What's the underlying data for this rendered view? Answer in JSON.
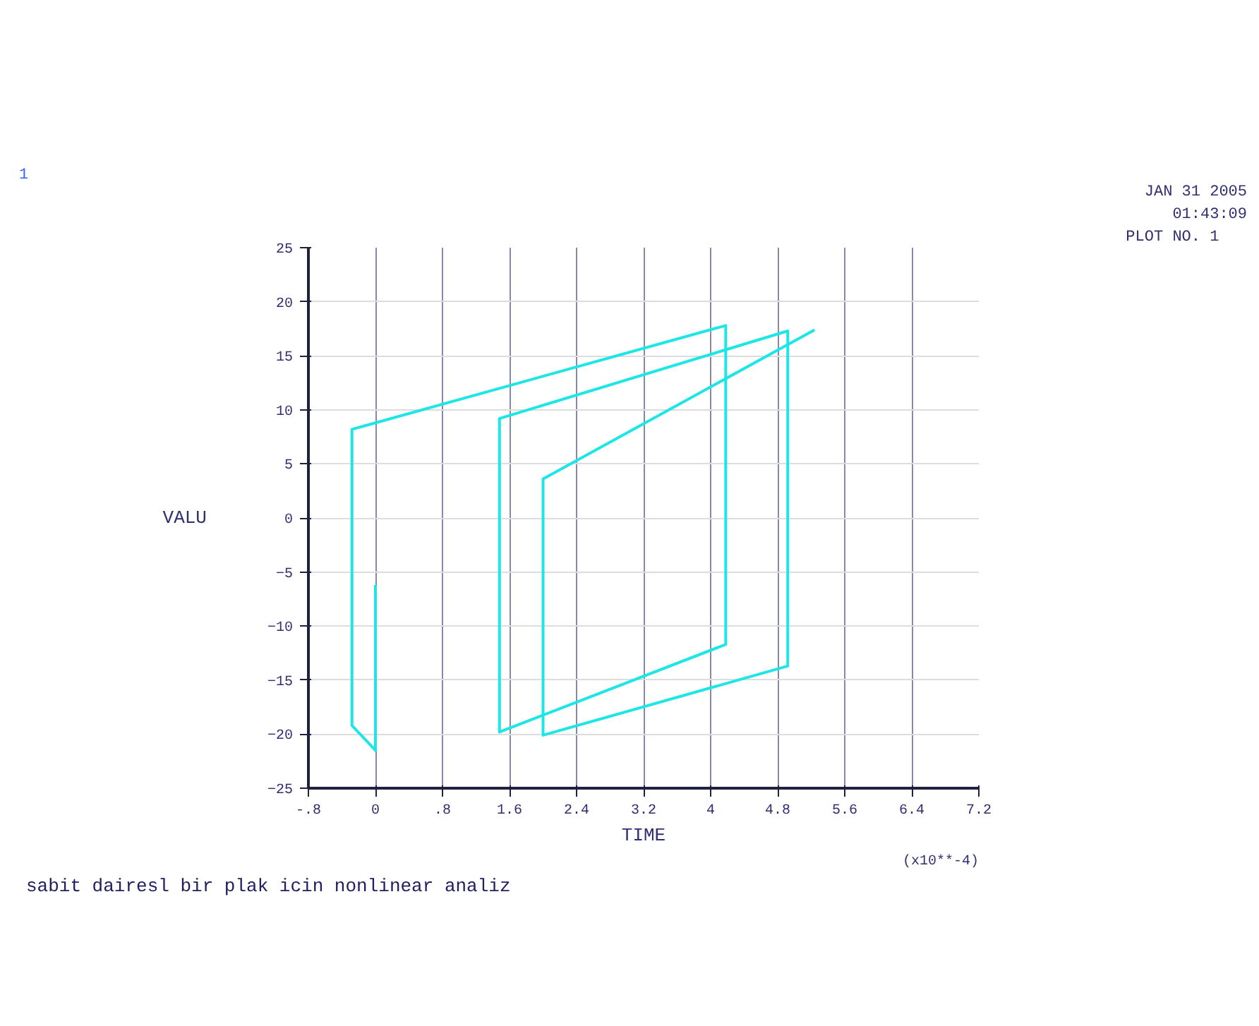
{
  "chart_data": {
    "type": "line",
    "title": "sabit dairesl bir plak icin nonlinear analiz",
    "xlabel": "TIME",
    "ylabel": "VALU",
    "annotations": [
      "1",
      "JAN 31 2005",
      "01:43:09",
      "PLOT NO.    1",
      "(x10**-4)"
    ],
    "series": [
      {
        "color": "#1ee6e6",
        "x": [
          0,
          0,
          -0.28,
          -0.28,
          4.18,
          4.18,
          1.48,
          1.48,
          4.92,
          4.92,
          2.0,
          2.0,
          5.24
        ],
        "values": [
          -6.2,
          -21.5,
          -19.2,
          8.2,
          17.8,
          -11.7,
          -19.8,
          9.2,
          17.3,
          -13.7,
          -20.1,
          3.6,
          17.4
        ]
      }
    ],
    "xlim": [
      -0.8,
      7.2
    ],
    "xticks": [
      {
        "value": -0.8,
        "label": "-.8"
      },
      0,
      {
        "value": 0.8,
        "label": ".8"
      },
      1.6,
      2.4,
      3.2,
      4,
      4.8,
      5.6,
      6.4,
      7.2
    ],
    "ylim": [
      -25,
      25
    ],
    "yticks": [
      -25,
      -20,
      -15,
      -10,
      -5,
      0,
      5,
      10,
      15,
      20,
      25
    ],
    "grid": true,
    "marker": "none",
    "line_style": "solid"
  }
}
